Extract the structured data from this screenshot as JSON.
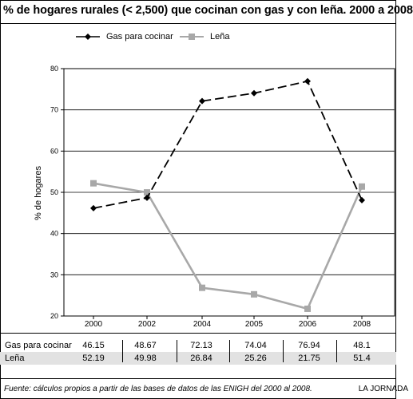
{
  "title": "% de hogares rurales (< 2,500) que cocinan con gas y con leña.  2000 a 2008",
  "legend": {
    "gas": "Gas para cocinar",
    "lena": "Leña"
  },
  "chart_data": {
    "type": "line",
    "title": "% de hogares rurales (< 2,500) que cocinan con gas y con leña.  2000 a 2008",
    "xlabel": "",
    "ylabel": "% de hogares",
    "categories": [
      "2000",
      "2002",
      "2004",
      "2005",
      "2006",
      "2008"
    ],
    "ylim": [
      20,
      80
    ],
    "yticks": [
      20,
      30,
      40,
      50,
      60,
      70,
      80
    ],
    "series": [
      {
        "name": "Gas para cocinar",
        "values": [
          46.15,
          48.67,
          72.13,
          74.04,
          76.94,
          48.1
        ],
        "color": "#000000",
        "marker": "diamond",
        "dashed": true
      },
      {
        "name": "Leña",
        "values": [
          52.19,
          49.98,
          26.84,
          25.26,
          21.75,
          51.4
        ],
        "color": "#a8a8a8",
        "marker": "square",
        "dashed": false
      }
    ],
    "legend_position": "top",
    "grid": true
  },
  "table": {
    "rows": [
      {
        "label": "Gas para cocinar",
        "values": [
          "46.15",
          "48.67",
          "72.13",
          "74.04",
          "76.94",
          "48.1"
        ]
      },
      {
        "label": "Leña",
        "values": [
          "52.19",
          "49.98",
          "26.84",
          "25.26",
          "21.75",
          "51.4"
        ]
      }
    ]
  },
  "footer": {
    "source": "Fuente: cálculos propios a partir de las bases de datos de las ENIGH del 2000 al 2008.",
    "brand": "LA JORNADA"
  }
}
